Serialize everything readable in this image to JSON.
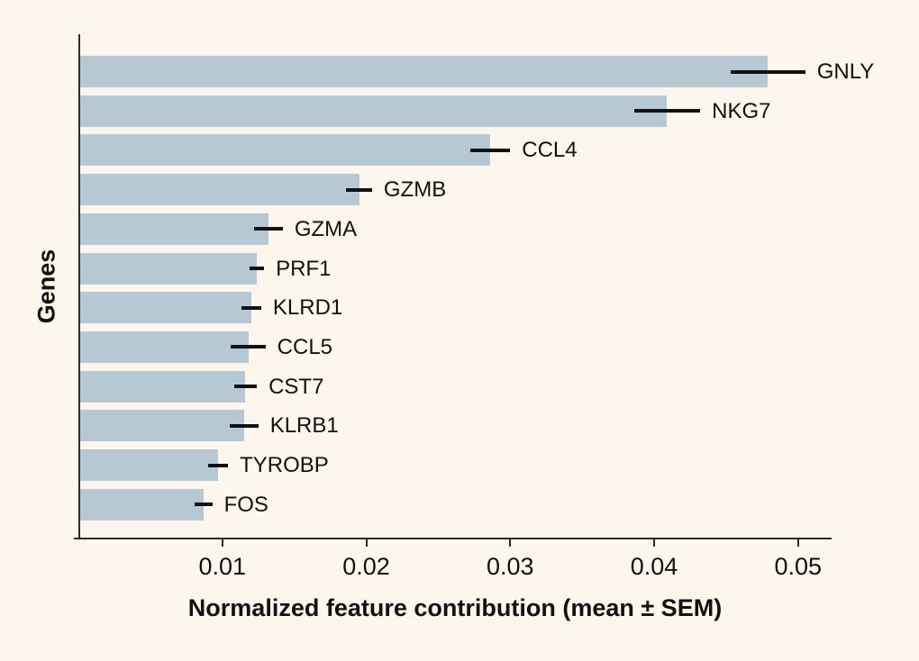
{
  "figure": {
    "background_color": "#FDF6EC",
    "bar_color": "#B5C8D4",
    "axis_color": "#2B2B2B",
    "error_bar_color": "#111111",
    "text_color": "#111111"
  },
  "chart_data": {
    "type": "bar",
    "orientation": "horizontal",
    "title": "",
    "xlabel": "Normalized feature contribution (mean ± SEM)",
    "ylabel": "Genes",
    "categories": [
      "GNLY",
      "NKG7",
      "CCL4",
      "GZMB",
      "GZMA",
      "PRF1",
      "KLRD1",
      "CCL5",
      "CST7",
      "KLRB1",
      "TYROBP",
      "FOS"
    ],
    "values": [
      0.0479,
      0.0409,
      0.0286,
      0.0195,
      0.0132,
      0.0124,
      0.012,
      0.0118,
      0.0116,
      0.0115,
      0.0097,
      0.0087
    ],
    "sem": [
      0.0026,
      0.0023,
      0.0014,
      0.0009,
      0.001,
      0.0005,
      0.0007,
      0.0012,
      0.0008,
      0.001,
      0.0007,
      0.0006
    ],
    "error_bars": "mean ± SEM, horizontal, no caps",
    "bar_labels": "category name to the right of each error bar",
    "sort_order": "descending by value, top to bottom",
    "xlim": [
      0,
      0.0523
    ],
    "xticks": [
      {
        "value": 0.01,
        "label": "0.01"
      },
      {
        "value": 0.02,
        "label": "0.02"
      },
      {
        "value": 0.03,
        "label": "0.03"
      },
      {
        "value": 0.04,
        "label": "0.04"
      },
      {
        "value": 0.05,
        "label": "0.05"
      }
    ],
    "grid": false,
    "legend": "none",
    "spines": [
      "left",
      "bottom"
    ]
  }
}
